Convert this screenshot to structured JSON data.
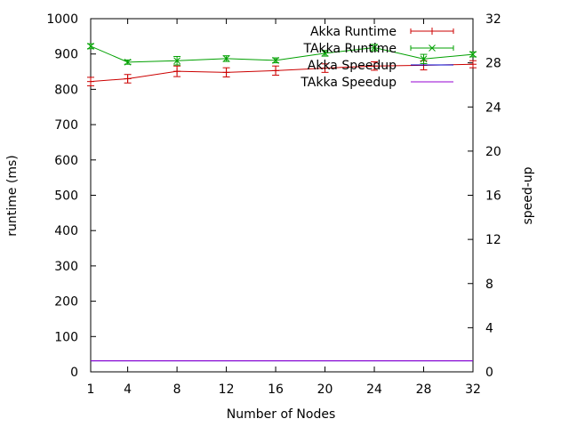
{
  "chart_data": {
    "type": "line",
    "title": "",
    "xlabel": "Number of Nodes",
    "ylabel": "runtime (ms)",
    "y2label": "speed-up",
    "x": [
      1,
      4,
      8,
      12,
      16,
      20,
      24,
      28,
      32
    ],
    "xticks": [
      "1",
      "4",
      "8",
      "12",
      "16",
      "20",
      "24",
      "28",
      "32"
    ],
    "xlim": [
      1,
      32
    ],
    "ylim": [
      0,
      1000
    ],
    "yticks": [
      "0",
      "100",
      "200",
      "300",
      "400",
      "500",
      "600",
      "700",
      "800",
      "900",
      "1000"
    ],
    "y2lim": [
      0,
      32
    ],
    "y2ticks": [
      "0",
      "4",
      "8",
      "12",
      "16",
      "20",
      "24",
      "28",
      "32"
    ],
    "grid": false,
    "legend_position": "top-right",
    "series": [
      {
        "name": "Akka Runtime",
        "axis": "left",
        "color": "#cc0000",
        "marker": "plus",
        "values": [
          822,
          830,
          851,
          848,
          853,
          860,
          866,
          868,
          871
        ],
        "errors": [
          12,
          12,
          15,
          13,
          13,
          12,
          12,
          13,
          10
        ]
      },
      {
        "name": "TAkka Runtime",
        "axis": "left",
        "color": "#00a000",
        "marker": "cross",
        "values": [
          922,
          877,
          881,
          887,
          882,
          902,
          918,
          886,
          899
        ],
        "errors": [
          7,
          6,
          12,
          8,
          7,
          8,
          9,
          13,
          7
        ]
      },
      {
        "name": "Akka Speedup",
        "axis": "right",
        "color": "#0000cc",
        "marker": "none",
        "values": [
          1,
          1,
          1,
          1,
          1,
          1,
          1,
          1,
          1
        ]
      },
      {
        "name": "TAkka Speedup",
        "axis": "right",
        "color": "#9400d3",
        "marker": "none",
        "values": [
          1,
          1,
          1,
          1,
          1,
          1,
          1,
          1,
          1
        ]
      }
    ]
  }
}
